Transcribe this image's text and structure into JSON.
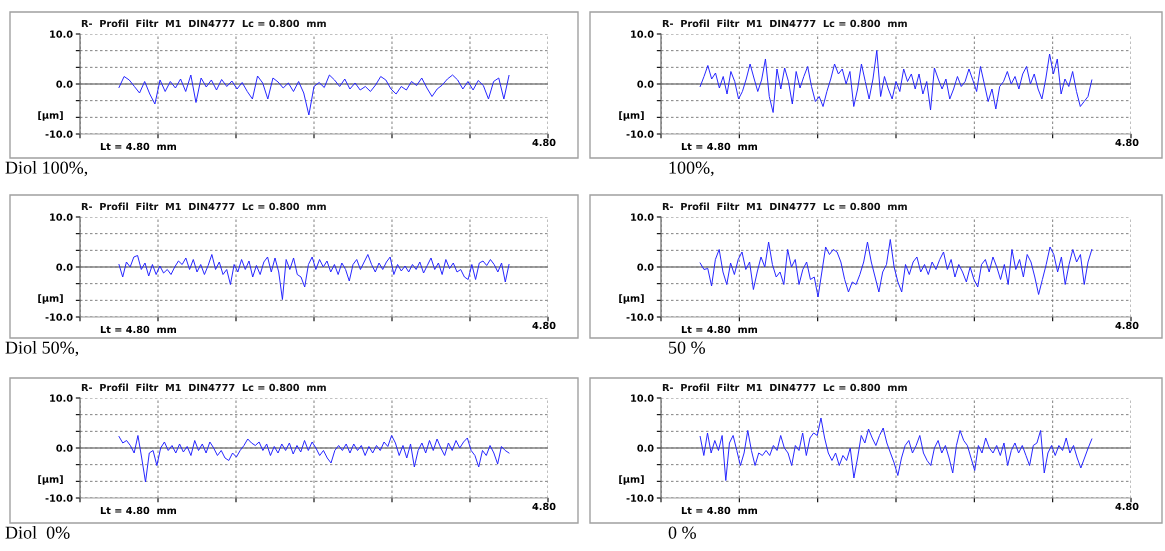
{
  "chart_data": [
    {
      "type": "line",
      "title": "R-  Profil  Filtr  M1  DIN4777  Lc = 0.800  mm",
      "ylabel": "[µm]",
      "annotations": [
        "Lt = 4.80  mm",
        "4.80",
        "Diol 100%,"
      ],
      "ylim": [
        -10,
        10
      ],
      "yticks": [
        {
          "value": -10,
          "label": "-10.0"
        },
        {
          "value": -6.67,
          "label": null
        },
        {
          "value": -3.33,
          "label": null
        },
        {
          "value": 0,
          "label": "0.0"
        },
        {
          "value": 3.33,
          "label": null
        },
        {
          "value": 6.67,
          "label": null
        },
        {
          "value": 10,
          "label": "10.0"
        }
      ],
      "grid": true,
      "ref_lines": [
        {
          "axis": "y",
          "value": 0,
          "color": "#808080"
        }
      ],
      "categories": [
        null,
        null,
        null,
        null,
        null,
        null,
        null,
        null,
        null,
        null,
        null,
        null,
        null,
        null,
        null,
        null,
        null,
        null,
        null,
        null,
        null,
        null,
        null,
        null,
        null,
        null,
        null,
        null,
        null,
        null,
        null,
        null,
        null,
        null,
        null,
        null,
        null,
        null,
        null,
        null,
        null,
        null,
        null,
        null,
        null,
        null,
        null,
        null,
        null,
        null,
        null,
        null,
        null,
        null,
        null,
        null,
        null,
        null,
        null,
        null,
        null,
        null,
        null,
        null,
        null,
        null,
        null,
        null,
        null,
        null,
        null,
        null,
        null,
        null,
        null,
        null,
        null
      ],
      "series": [
        {
          "color": "#2020ff",
          "values": [
            -0.7,
            1.5,
            0.8,
            -0.5,
            -1.8,
            0.5,
            -2.0,
            -4.0,
            0.8,
            -1.5,
            0.5,
            -0.8,
            1.0,
            -1.5,
            1.8,
            -3.7,
            1.2,
            -0.6,
            0.8,
            -1.2,
            0.9,
            -0.5,
            0.6,
            -1.0,
            0.3,
            -1.5,
            -3.0,
            1.6,
            0.2,
            -3.0,
            1.2,
            0.4,
            -0.8,
            0.2,
            -1.5,
            0.5,
            -1.8,
            -6.2,
            -0.5,
            0.3,
            -0.7,
            1.8,
            0.8,
            -0.5,
            1.0,
            -1.0,
            0.2,
            -1.2,
            -0.5,
            -1.5,
            -0.2,
            1.5,
            0.8,
            -1.0,
            -2.0,
            -0.5,
            -1.2,
            0.5,
            -0.3,
            1.2,
            -0.8,
            -2.5,
            -1.0,
            -0.2,
            1.0,
            1.8,
            0.8,
            -1.0,
            0.5,
            -1.2,
            0.7,
            -0.3,
            -3.0,
            0.5,
            1.2,
            -3.0,
            1.7
          ]
        }
      ]
    },
    {
      "type": "line",
      "title": "R-  Profil  Filtr  M1  DIN4777  Lc = 0.800  mm",
      "ylabel": "[µm]",
      "annotations": [
        "Lt = 4.80  mm",
        "4.80",
        "100%,"
      ],
      "ylim": [
        -10,
        10
      ],
      "yticks": [
        {
          "value": -10,
          "label": "-10.0"
        },
        {
          "value": -6.67,
          "label": null
        },
        {
          "value": -3.33,
          "label": null
        },
        {
          "value": 0,
          "label": "0.0"
        },
        {
          "value": 3.33,
          "label": null
        },
        {
          "value": 6.67,
          "label": null
        },
        {
          "value": 10,
          "label": "10.0"
        }
      ],
      "grid": true,
      "ref_lines": [
        {
          "axis": "y",
          "value": 0,
          "color": "#808080"
        }
      ],
      "categories": [
        null,
        null,
        null,
        null,
        null,
        null,
        null,
        null,
        null,
        null,
        null,
        null,
        null,
        null,
        null,
        null,
        null,
        null,
        null,
        null,
        null,
        null,
        null,
        null,
        null,
        null,
        null,
        null,
        null,
        null,
        null,
        null,
        null,
        null,
        null,
        null,
        null,
        null,
        null,
        null,
        null,
        null,
        null,
        null,
        null,
        null,
        null,
        null,
        null,
        null,
        null,
        null,
        null,
        null,
        null,
        null,
        null,
        null,
        null,
        null,
        null,
        null,
        null,
        null,
        null,
        null,
        null,
        null,
        null,
        null,
        null,
        null,
        null,
        null,
        null,
        null,
        null,
        null,
        null,
        null,
        null,
        null,
        null,
        null,
        null,
        null,
        null,
        null,
        null,
        null,
        null,
        null,
        null,
        null,
        null,
        null,
        null,
        null,
        null,
        null,
        null,
        null,
        null
      ],
      "series": [
        {
          "color": "#2020ff",
          "values": [
            -0.5,
            1.5,
            3.7,
            1.0,
            2.2,
            -0.8,
            1.5,
            -2.0,
            2.5,
            0.5,
            -3.0,
            -1.5,
            1.0,
            4.0,
            1.2,
            -1.5,
            0.8,
            5.0,
            -2.5,
            -5.7,
            3.0,
            -1.0,
            3.2,
            0.5,
            -4.0,
            2.5,
            -0.8,
            1.5,
            3.5,
            -0.5,
            -3.5,
            -2.5,
            -4.5,
            -1.5,
            1.0,
            4.0,
            2.0,
            3.0,
            0.0,
            2.5,
            -4.5,
            -1.0,
            4.0,
            0.5,
            -3.0,
            1.0,
            6.7,
            -2.5,
            1.5,
            -1.0,
            -3.0,
            0.5,
            -1.5,
            3.0,
            0.5,
            2.0,
            -1.0,
            2.0,
            -2.0,
            0.5,
            -5.2,
            3.2,
            1.0,
            -1.0,
            1.0,
            -3.0,
            -1.0,
            1.5,
            -0.5,
            0.5,
            3.0,
            0.8,
            -1.5,
            3.5,
            0.0,
            -3.5,
            -1.0,
            -5.0,
            -0.5,
            0.5,
            2.5,
            0.0,
            1.5,
            -1.0,
            2.0,
            3.5,
            0.0,
            2.0,
            -1.0,
            -3.0,
            1.0,
            6.0,
            2.0,
            5.0,
            -2.0,
            1.0,
            -0.5,
            2.5,
            -1.5,
            -4.5,
            -3.5,
            -2.5,
            0.8
          ]
        }
      ]
    },
    {
      "type": "line",
      "title": "R-  Profil  Filtr  M1  DIN4777  Lc = 0.800  mm",
      "ylabel": "[µm]",
      "annotations": [
        "Lt = 4.80  mm",
        "4.80",
        "Diol 50%,"
      ],
      "ylim": [
        -10,
        10
      ],
      "yticks": [
        {
          "value": -10,
          "label": "-10.0"
        },
        {
          "value": -6.67,
          "label": null
        },
        {
          "value": -3.33,
          "label": null
        },
        {
          "value": 0,
          "label": "0.0"
        },
        {
          "value": 3.33,
          "label": null
        },
        {
          "value": 6.67,
          "label": null
        },
        {
          "value": 10,
          "label": "10.0"
        }
      ],
      "grid": true,
      "ref_lines": [
        {
          "axis": "y",
          "value": 0,
          "color": "#808080"
        }
      ],
      "categories": [
        null,
        null,
        null,
        null,
        null,
        null,
        null,
        null,
        null,
        null,
        null,
        null,
        null,
        null,
        null,
        null,
        null,
        null,
        null,
        null,
        null,
        null,
        null,
        null,
        null,
        null,
        null,
        null,
        null,
        null,
        null,
        null,
        null,
        null,
        null,
        null,
        null,
        null,
        null,
        null,
        null,
        null,
        null,
        null,
        null,
        null,
        null,
        null,
        null,
        null,
        null,
        null,
        null,
        null,
        null,
        null,
        null,
        null,
        null,
        null,
        null,
        null,
        null,
        null,
        null,
        null,
        null,
        null,
        null,
        null,
        null,
        null,
        null,
        null,
        null,
        null,
        null,
        null,
        null,
        null,
        null,
        null,
        null,
        null,
        null,
        null,
        null,
        null,
        null,
        null,
        null,
        null,
        null,
        null,
        null,
        null,
        null,
        null,
        null,
        null,
        null,
        null,
        null,
        null,
        null,
        null
      ],
      "series": [
        {
          "color": "#2020ff",
          "values": [
            0.5,
            -2.0,
            1.0,
            0.0,
            2.0,
            2.3,
            -0.5,
            0.8,
            -1.8,
            0.5,
            -1.5,
            0.2,
            -1.2,
            -0.5,
            -1.5,
            0.0,
            1.2,
            0.5,
            1.8,
            -0.5,
            1.5,
            -1.0,
            0.5,
            -1.5,
            0.3,
            2.5,
            -0.5,
            1.0,
            -1.5,
            -0.5,
            -3.5,
            0.5,
            -1.0,
            1.5,
            -0.5,
            1.2,
            -2.0,
            0.3,
            -1.5,
            1.0,
            2.0,
            -1.0,
            1.8,
            -1.0,
            -6.5,
            1.5,
            -0.5,
            1.8,
            -1.5,
            -2.0,
            -4.0,
            0.5,
            2.0,
            -0.5,
            1.5,
            0.0,
            1.2,
            -1.0,
            0.5,
            -1.5,
            0.8,
            -0.5,
            -2.8,
            0.5,
            1.5,
            -0.5,
            1.0,
            2.5,
            0.5,
            -1.0,
            0.8,
            -0.5,
            1.0,
            2.0,
            -1.5,
            0.5,
            -0.8,
            0.2,
            -1.0,
            0.5,
            -0.5,
            1.0,
            -1.2,
            0.3,
            1.8,
            -0.5,
            0.8,
            -1.5,
            1.5,
            -0.3,
            0.8,
            -1.0,
            -0.5,
            -2.0,
            -2.5,
            0.5,
            -2.5,
            0.8,
            1.2,
            0.3,
            1.5,
            0.5,
            -1.0,
            0.8,
            -3.0,
            0.5
          ]
        }
      ]
    },
    {
      "type": "line",
      "title": "R-  Profil  Filtr  M1  DIN4777  Lc = 0.800  mm",
      "ylabel": "[µm]",
      "annotations": [
        "Lt = 4.80  mm",
        "4.80",
        "50 %"
      ],
      "ylim": [
        -10,
        10
      ],
      "yticks": [
        {
          "value": -10,
          "label": "-10.0"
        },
        {
          "value": -6.67,
          "label": null
        },
        {
          "value": -3.33,
          "label": null
        },
        {
          "value": 0,
          "label": "0.0"
        },
        {
          "value": 3.33,
          "label": null
        },
        {
          "value": 6.67,
          "label": null
        },
        {
          "value": 10,
          "label": "10.0"
        }
      ],
      "grid": true,
      "ref_lines": [
        {
          "axis": "y",
          "value": 0,
          "color": "#808080"
        }
      ],
      "categories": [
        null,
        null,
        null,
        null,
        null,
        null,
        null,
        null,
        null,
        null,
        null,
        null,
        null,
        null,
        null,
        null,
        null,
        null,
        null,
        null,
        null,
        null,
        null,
        null,
        null,
        null,
        null,
        null,
        null,
        null,
        null,
        null,
        null,
        null,
        null,
        null,
        null,
        null,
        null,
        null,
        null,
        null,
        null,
        null,
        null,
        null,
        null,
        null,
        null,
        null,
        null,
        null,
        null,
        null,
        null,
        null,
        null,
        null,
        null,
        null,
        null,
        null,
        null,
        null,
        null,
        null,
        null,
        null,
        null,
        null,
        null,
        null,
        null,
        null,
        null,
        null,
        null,
        null,
        null,
        null,
        null,
        null,
        null,
        null,
        null,
        null,
        null,
        null,
        null,
        null,
        null,
        null,
        null,
        null,
        null,
        null,
        null,
        null,
        null,
        null,
        null,
        null,
        null,
        null
      ],
      "series": [
        {
          "color": "#2020ff",
          "values": [
            0.8,
            -0.5,
            -0.3,
            -3.8,
            1.5,
            3.5,
            -1.0,
            -3.5,
            0.8,
            -1.5,
            1.5,
            3.0,
            -0.5,
            1.0,
            -4.5,
            -1.0,
            2.0,
            0.0,
            5.0,
            0.5,
            -2.0,
            -1.0,
            -3.5,
            3.5,
            0.0,
            1.5,
            -3.5,
            -0.5,
            1.0,
            -2.5,
            -2.0,
            -6.0,
            -1.0,
            4.0,
            2.5,
            3.5,
            3.0,
            1.0,
            -2.5,
            -5.0,
            -3.0,
            -3.5,
            -1.5,
            1.0,
            5.0,
            1.0,
            -2.0,
            -5.0,
            -1.0,
            0.5,
            5.5,
            0.0,
            -3.0,
            -5.0,
            0.5,
            -1.5,
            1.0,
            2.0,
            -1.0,
            0.5,
            -1.5,
            1.0,
            -0.5,
            1.5,
            3.0,
            -0.5,
            1.5,
            -2.0,
            0.5,
            -1.0,
            -3.0,
            0.0,
            -2.5,
            -4.0,
            0.5,
            1.5,
            -1.0,
            2.0,
            0.0,
            -2.5,
            0.5,
            -3.5,
            3.5,
            -0.5,
            1.5,
            -2.0,
            2.5,
            1.0,
            -2.0,
            -5.5,
            -2.5,
            0.5,
            4.0,
            2.5,
            -1.0,
            2.0,
            -3.5,
            0.5,
            3.5,
            1.0,
            2.5,
            -3.5,
            1.0,
            3.5
          ]
        }
      ]
    },
    {
      "type": "line",
      "title": "R-  Profil  Filtr  M1  DIN4777  Lc = 0.800  mm",
      "ylabel": "[µm]",
      "annotations": [
        "Lt = 4.80  mm",
        "4.80",
        "Diol  0%"
      ],
      "ylim": [
        -10,
        10
      ],
      "yticks": [
        {
          "value": -10,
          "label": "-10.0"
        },
        {
          "value": -6.67,
          "label": null
        },
        {
          "value": -3.33,
          "label": null
        },
        {
          "value": 0,
          "label": "0.0"
        },
        {
          "value": 3.33,
          "label": null
        },
        {
          "value": 6.67,
          "label": null
        },
        {
          "value": 10,
          "label": "10.0"
        }
      ],
      "grid": true,
      "ref_lines": [
        {
          "axis": "y",
          "value": 0,
          "color": "#808080"
        }
      ],
      "categories": [
        null,
        null,
        null,
        null,
        null,
        null,
        null,
        null,
        null,
        null,
        null,
        null,
        null,
        null,
        null,
        null,
        null,
        null,
        null,
        null,
        null,
        null,
        null,
        null,
        null,
        null,
        null,
        null,
        null,
        null,
        null,
        null,
        null,
        null,
        null,
        null,
        null,
        null,
        null,
        null,
        null,
        null,
        null,
        null,
        null,
        null,
        null,
        null,
        null,
        null,
        null,
        null,
        null,
        null,
        null,
        null,
        null,
        null,
        null,
        null,
        null,
        null,
        null,
        null,
        null,
        null,
        null,
        null,
        null,
        null,
        null,
        null,
        null,
        null,
        null,
        null,
        null,
        null,
        null,
        null,
        null,
        null,
        null,
        null,
        null,
        null,
        null,
        null,
        null,
        null,
        null,
        null,
        null,
        null,
        null,
        null,
        null,
        null,
        null,
        null,
        null,
        null,
        null,
        null
      ],
      "series": [
        {
          "color": "#2020ff",
          "values": [
            2.3,
            1.0,
            1.5,
            0.5,
            -1.0,
            2.5,
            -2.0,
            -6.8,
            -1.0,
            -0.5,
            -3.5,
            0.0,
            1.2,
            -0.5,
            0.5,
            -1.0,
            0.8,
            -0.8,
            0.3,
            -1.5,
            1.5,
            -0.5,
            0.8,
            -1.0,
            1.2,
            0.0,
            -1.5,
            -0.5,
            -2.0,
            -2.5,
            -1.0,
            -1.8,
            -0.5,
            0.5,
            1.8,
            1.0,
            0.5,
            1.2,
            -0.5,
            0.8,
            -1.5,
            0.3,
            -1.0,
            0.8,
            -0.5,
            1.0,
            -1.2,
            0.5,
            -0.8,
            1.5,
            -0.5,
            1.2,
            0.0,
            -1.5,
            -0.5,
            -2.0,
            -3.0,
            -0.5,
            0.5,
            -0.5,
            0.8,
            -1.0,
            0.8,
            -0.5,
            0.5,
            -1.5,
            0.3,
            -1.0,
            0.5,
            -0.5,
            1.2,
            0.3,
            2.5,
            1.0,
            -1.5,
            0.5,
            -2.0,
            0.8,
            -3.8,
            -0.5,
            1.0,
            -1.0,
            1.5,
            -0.5,
            1.8,
            0.0,
            -1.5,
            1.0,
            -0.5,
            1.5,
            0.0,
            1.2,
            2.0,
            -0.5,
            -1.5,
            -3.8,
            -0.5,
            -1.5,
            0.5,
            -1.0,
            -3.2,
            0.3,
            -0.5,
            -1.0
          ]
        }
      ]
    },
    {
      "type": "line",
      "title": "R-  Profil  Filtr  M1  DIN4777  Lc = 0.800  mm",
      "ylabel": "[µm]",
      "annotations": [
        "Lt = 4.80  mm",
        "4.80",
        "0 %"
      ],
      "ylim": [
        -10,
        10
      ],
      "yticks": [
        {
          "value": -10,
          "label": "-10.0"
        },
        {
          "value": -6.67,
          "label": null
        },
        {
          "value": -3.33,
          "label": null
        },
        {
          "value": 0,
          "label": "0.0"
        },
        {
          "value": 3.33,
          "label": null
        },
        {
          "value": 6.67,
          "label": null
        },
        {
          "value": 10,
          "label": "10.0"
        }
      ],
      "grid": true,
      "ref_lines": [
        {
          "axis": "y",
          "value": 0,
          "color": "#808080"
        }
      ],
      "categories": [
        null,
        null,
        null,
        null,
        null,
        null,
        null,
        null,
        null,
        null,
        null,
        null,
        null,
        null,
        null,
        null,
        null,
        null,
        null,
        null,
        null,
        null,
        null,
        null,
        null,
        null,
        null,
        null,
        null,
        null,
        null,
        null,
        null,
        null,
        null,
        null,
        null,
        null,
        null,
        null,
        null,
        null,
        null,
        null,
        null,
        null,
        null,
        null,
        null,
        null,
        null,
        null,
        null,
        null,
        null,
        null,
        null,
        null,
        null,
        null,
        null,
        null,
        null,
        null,
        null,
        null,
        null,
        null,
        null,
        null,
        null,
        null,
        null,
        null,
        null,
        null,
        null,
        null,
        null,
        null,
        null,
        null,
        null,
        null,
        null,
        null,
        null,
        null,
        null,
        null,
        null,
        null,
        null,
        null,
        null,
        null,
        null,
        null,
        null,
        null,
        null,
        null,
        null,
        null,
        null,
        null,
        null,
        null
      ],
      "series": [
        {
          "color": "#2020ff",
          "values": [
            2.3,
            -1.5,
            3.0,
            -1.0,
            1.5,
            -0.5,
            2.5,
            -6.5,
            1.0,
            2.5,
            -0.5,
            -3.5,
            -1.0,
            3.5,
            -0.5,
            -3.5,
            -1.0,
            -1.5,
            -0.5,
            -1.5,
            0.5,
            -0.5,
            2.5,
            0.0,
            -1.0,
            -3.5,
            0.5,
            -0.5,
            3.0,
            -1.5,
            2.0,
            3.0,
            2.5,
            6.0,
            2.0,
            -1.0,
            -2.5,
            -1.0,
            -3.5,
            -1.5,
            -2.5,
            0.0,
            -6.0,
            -2.0,
            2.5,
            1.0,
            3.8,
            2.0,
            0.5,
            2.5,
            4.0,
            1.0,
            -1.0,
            -3.0,
            -5.5,
            -2.0,
            0.5,
            1.5,
            -1.0,
            0.5,
            2.5,
            -1.0,
            -2.5,
            -3.5,
            0.0,
            1.5,
            -1.0,
            0.5,
            -2.0,
            -5.0,
            0.5,
            3.5,
            1.5,
            0.5,
            -2.0,
            -4.5,
            0.5,
            -1.0,
            2.0,
            0.0,
            -1.0,
            0.5,
            -1.5,
            1.0,
            -3.5,
            -0.5,
            1.0,
            -1.0,
            0.5,
            -1.5,
            -3.5,
            0.5,
            1.0,
            3.5,
            -5.0,
            -1.0,
            0.5,
            -1.5,
            0.5,
            -0.5,
            2.0,
            -1.0,
            0.5,
            -2.0,
            -4.0,
            -2.0,
            0.0,
            1.8
          ]
        }
      ]
    }
  ]
}
